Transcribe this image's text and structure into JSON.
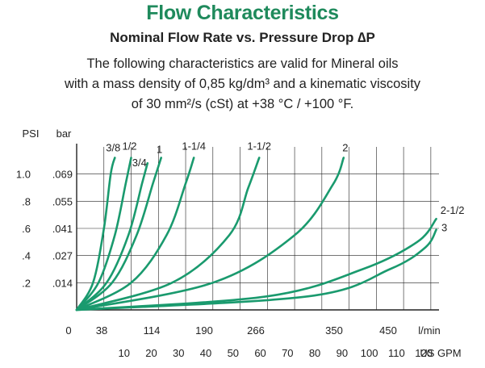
{
  "header": {
    "title": "Flow Characteristics",
    "subtitle": "Nominal Flow Rate vs. Pressure Drop ∆P",
    "desc_lines": [
      "The following characteristics are valid for Mineral oils",
      "with a mass density of 0,85 kg/dm³ and a kinematic viscosity",
      "of 30 mm²/s (cSt) at +38 °C / +100 °F."
    ]
  },
  "colors": {
    "curve": "#1a9a6e",
    "grid": "#222222",
    "title": "#1f8a5c"
  },
  "chart_data": {
    "type": "line",
    "title": "Flow Characteristics",
    "subtitle": "Nominal Flow Rate vs. Pressure Drop ∆P",
    "y_units": [
      "PSI",
      "bar"
    ],
    "y_psi_ticks": [
      "1.0",
      ".8",
      ".6",
      ".4",
      ".2"
    ],
    "y_bar_ticks": [
      ".069",
      ".055",
      ".041",
      ".027",
      ".014"
    ],
    "y_tick_values_psi": [
      1.0,
      0.8,
      0.6,
      0.4,
      0.2
    ],
    "ylim_psi": [
      0,
      1.2
    ],
    "x_lmin_ticks": [
      "0",
      "38",
      "114",
      "190",
      "266",
      "350",
      "450"
    ],
    "x_lmin_unit": "l/min",
    "x_gpm_ticks": [
      "10",
      "20",
      "30",
      "40",
      "50",
      "60",
      "70",
      "80",
      "90",
      "100",
      "110",
      "120"
    ],
    "x_gpm_unit": "US GPM",
    "xlim_gpm": [
      0,
      133
    ],
    "grid": true,
    "series": [
      {
        "name": "3/8",
        "x": [
          0,
          6,
          10,
          12.5,
          14
        ],
        "y": [
          0,
          0.2,
          0.6,
          1.0,
          1.12
        ]
      },
      {
        "name": "1/2",
        "x": [
          0,
          8,
          14,
          18,
          20
        ],
        "y": [
          0,
          0.2,
          0.55,
          0.93,
          1.12
        ]
      },
      {
        "name": "3/4",
        "x": [
          0,
          11,
          19,
          24,
          26
        ],
        "y": [
          0,
          0.2,
          0.55,
          0.93,
          1.08
        ]
      },
      {
        "name": "1",
        "x": [
          0,
          13,
          22,
          28,
          31
        ],
        "y": [
          0,
          0.2,
          0.55,
          0.93,
          1.12
        ]
      },
      {
        "name": "1-1/4",
        "x": [
          0,
          20,
          33,
          40,
          43
        ],
        "y": [
          0,
          0.2,
          0.55,
          0.93,
          1.12
        ]
      },
      {
        "name": "1-1/2",
        "x": [
          0,
          35,
          56,
          63,
          67
        ],
        "y": [
          0,
          0.2,
          0.55,
          0.9,
          1.12
        ]
      },
      {
        "name": "2",
        "x": [
          0,
          50,
          80,
          94,
          98
        ],
        "y": [
          0,
          0.2,
          0.55,
          0.92,
          1.12
        ]
      },
      {
        "name": "2-1/2",
        "x": [
          0,
          70,
          105,
          125,
          132
        ],
        "y": [
          0,
          0.1,
          0.3,
          0.5,
          0.67
        ]
      },
      {
        "name": "3",
        "x": [
          0,
          85,
          115,
          128,
          132
        ],
        "y": [
          0,
          0.1,
          0.3,
          0.46,
          0.59
        ]
      }
    ]
  }
}
